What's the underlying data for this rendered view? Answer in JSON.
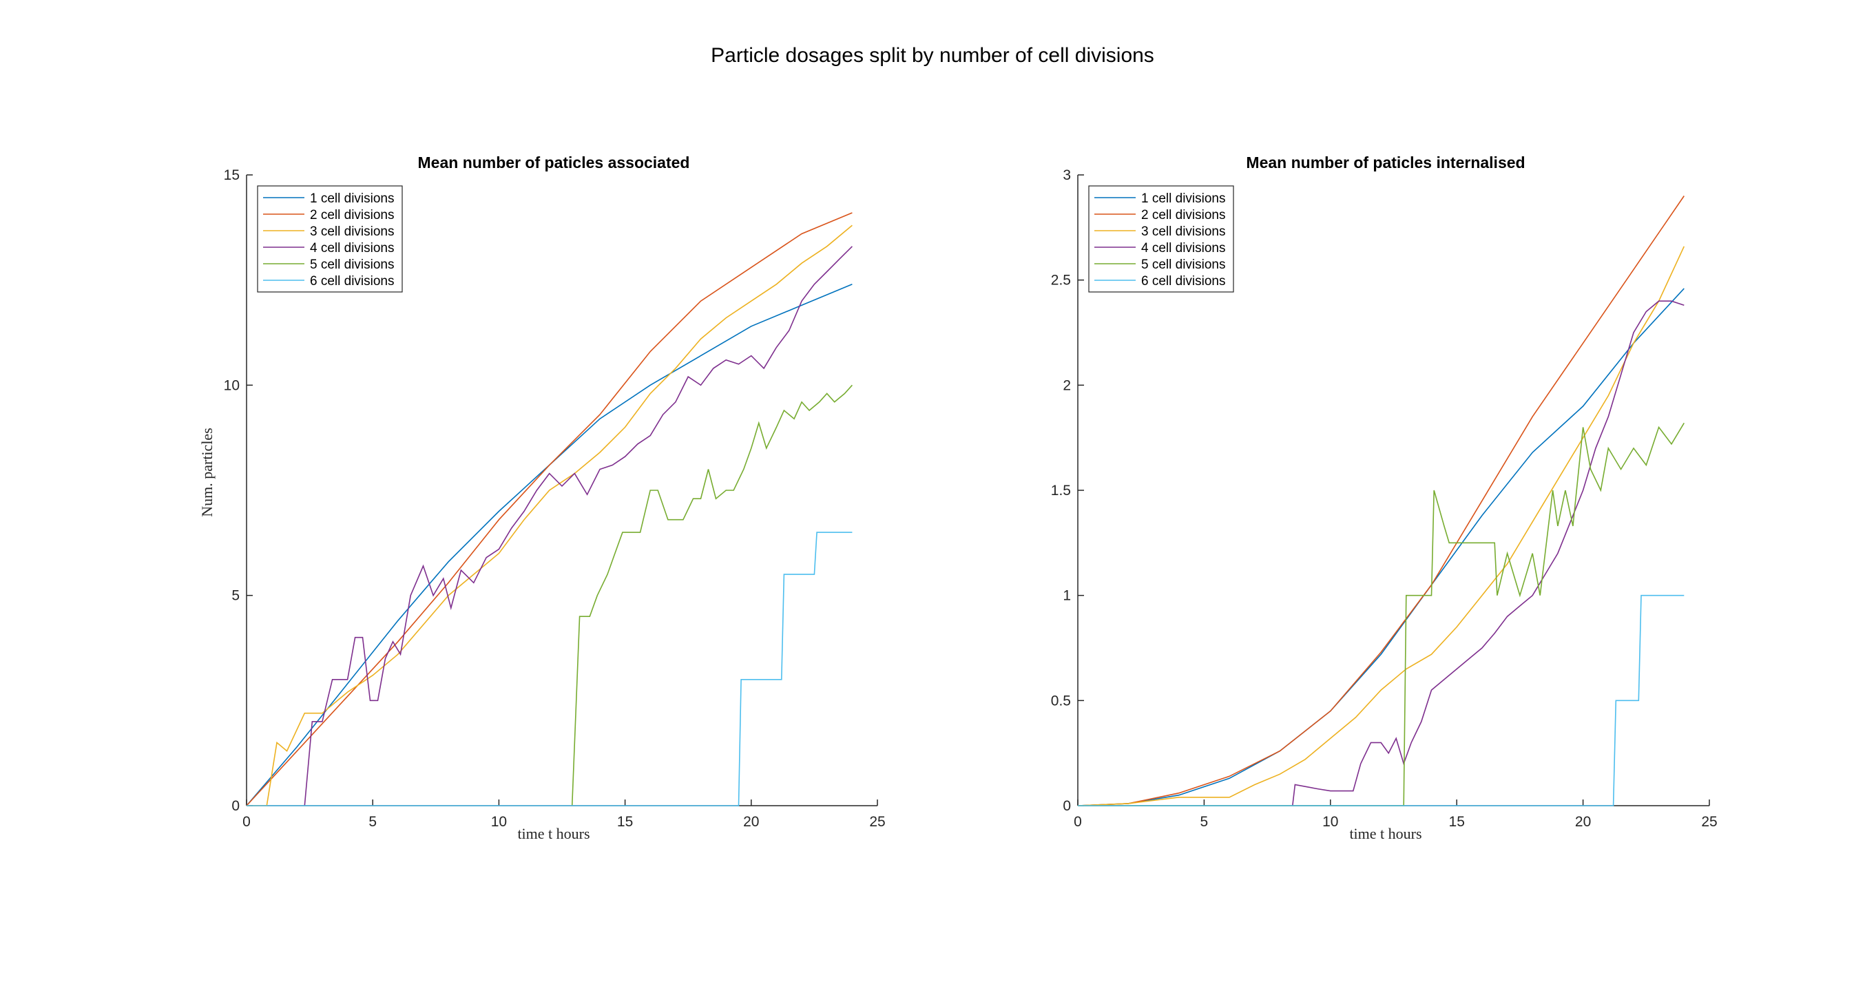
{
  "figure": {
    "title": "Particle dosages split by number of cell divisions"
  },
  "chart_data": [
    {
      "type": "line",
      "title": "Mean number of paticles associated",
      "xlabel": "time t hours",
      "ylabel": "Num. particles",
      "xlim": [
        0,
        25
      ],
      "ylim": [
        0,
        15
      ],
      "xticks": [
        "0",
        "5",
        "10",
        "15",
        "20",
        "25"
      ],
      "yticks": [
        "0",
        "5",
        "10",
        "15"
      ],
      "grid": false,
      "legend_position": "top-left",
      "series": [
        {
          "name": "1 cell divisions",
          "color": "#0072bd",
          "x": [
            0,
            2,
            4,
            6,
            8,
            10,
            12,
            14,
            16,
            18,
            20,
            22,
            24
          ],
          "y": [
            0,
            1.4,
            2.9,
            4.4,
            5.8,
            7.0,
            8.1,
            9.2,
            10.0,
            10.7,
            11.4,
            11.9,
            12.4
          ]
        },
        {
          "name": "2 cell divisions",
          "color": "#d95319",
          "x": [
            0,
            2,
            4,
            6,
            8,
            10,
            12,
            14,
            16,
            18,
            20,
            22,
            24
          ],
          "y": [
            0,
            1.3,
            2.6,
            3.9,
            5.3,
            6.8,
            8.1,
            9.3,
            10.8,
            12.0,
            12.8,
            13.6,
            14.1
          ]
        },
        {
          "name": "3 cell divisions",
          "color": "#edb120",
          "x": [
            0,
            0.8,
            1.2,
            1.6,
            2.3,
            3,
            4,
            5,
            6,
            7,
            8,
            9,
            10,
            11,
            12,
            13,
            14,
            15,
            16,
            17,
            18,
            19,
            20,
            21,
            22,
            23,
            24
          ],
          "y": [
            0,
            0,
            1.5,
            1.3,
            2.2,
            2.2,
            2.7,
            3.1,
            3.6,
            4.3,
            5.0,
            5.5,
            6.0,
            6.8,
            7.5,
            7.9,
            8.4,
            9.0,
            9.8,
            10.4,
            11.1,
            11.6,
            12.0,
            12.4,
            12.9,
            13.3,
            13.8
          ]
        },
        {
          "name": "4 cell divisions",
          "color": "#7e2f8e",
          "x": [
            2.3,
            2.6,
            3,
            3.4,
            4,
            4.3,
            4.6,
            4.9,
            5.2,
            5.5,
            5.8,
            6.1,
            6.5,
            7,
            7.4,
            7.8,
            8.1,
            8.5,
            9,
            9.5,
            10,
            10.5,
            11,
            11.5,
            12,
            12.5,
            13,
            13.5,
            14,
            14.5,
            15,
            15.5,
            16,
            16.5,
            17,
            17.5,
            18,
            18.5,
            19,
            19.5,
            20,
            20.5,
            21,
            21.5,
            22,
            22.5,
            23,
            23.5,
            24
          ],
          "y": [
            0,
            2.0,
            2.0,
            3.0,
            3.0,
            4.0,
            4.0,
            2.5,
            2.5,
            3.5,
            3.9,
            3.6,
            5.0,
            5.7,
            5.0,
            5.4,
            4.7,
            5.6,
            5.3,
            5.9,
            6.1,
            6.6,
            7.0,
            7.5,
            7.9,
            7.6,
            7.9,
            7.4,
            8.0,
            8.1,
            8.3,
            8.6,
            8.8,
            9.3,
            9.6,
            10.2,
            10.0,
            10.4,
            10.6,
            10.5,
            10.7,
            10.4,
            10.9,
            11.3,
            12.0,
            12.4,
            12.7,
            13.0,
            13.3
          ]
        },
        {
          "name": "5 cell divisions",
          "color": "#77ac30",
          "x": [
            12.9,
            13.2,
            13.6,
            13.9,
            14.3,
            14.6,
            14.9,
            15.3,
            15.6,
            16,
            16.3,
            16.7,
            17,
            17.3,
            17.7,
            18,
            18.3,
            18.6,
            19,
            19.3,
            19.7,
            20,
            20.3,
            20.6,
            21,
            21.3,
            21.7,
            22,
            22.3,
            22.7,
            23,
            23.3,
            23.7,
            24
          ],
          "y": [
            0,
            4.5,
            4.5,
            5.0,
            5.5,
            6.0,
            6.5,
            6.5,
            6.5,
            7.5,
            7.5,
            6.8,
            6.8,
            6.8,
            7.3,
            7.3,
            8.0,
            7.3,
            7.5,
            7.5,
            8.0,
            8.5,
            9.1,
            8.5,
            9.0,
            9.4,
            9.2,
            9.6,
            9.4,
            9.6,
            9.8,
            9.6,
            9.8,
            10.0
          ]
        },
        {
          "name": "6 cell divisions",
          "color": "#4dbeee",
          "x": [
            0,
            19.5,
            19.6,
            21.2,
            21.3,
            22.5,
            22.6,
            24
          ],
          "y": [
            0,
            0,
            3.0,
            3.0,
            5.5,
            5.5,
            6.5,
            6.5
          ]
        }
      ]
    },
    {
      "type": "line",
      "title": "Mean number of paticles internalised",
      "xlabel": "time t hours",
      "ylabel": "",
      "xlim": [
        0,
        25
      ],
      "ylim": [
        0,
        3
      ],
      "xticks": [
        "0",
        "5",
        "10",
        "15",
        "20",
        "25"
      ],
      "yticks": [
        "0",
        "0.5",
        "1",
        "1.5",
        "2",
        "2.5",
        "3"
      ],
      "grid": false,
      "legend_position": "top-left",
      "series": [
        {
          "name": "1 cell divisions",
          "color": "#0072bd",
          "x": [
            0,
            2,
            4,
            6,
            8,
            10,
            12,
            14,
            16,
            18,
            20,
            22,
            24
          ],
          "y": [
            0,
            0.01,
            0.05,
            0.13,
            0.26,
            0.45,
            0.72,
            1.05,
            1.38,
            1.68,
            1.9,
            2.2,
            2.46
          ]
        },
        {
          "name": "2 cell divisions",
          "color": "#d95319",
          "x": [
            0,
            2,
            4,
            6,
            8,
            10,
            12,
            14,
            16,
            18,
            20,
            22,
            24
          ],
          "y": [
            0,
            0.01,
            0.06,
            0.14,
            0.26,
            0.45,
            0.73,
            1.05,
            1.45,
            1.85,
            2.2,
            2.55,
            2.9
          ]
        },
        {
          "name": "3 cell divisions",
          "color": "#edb120",
          "x": [
            0,
            2,
            4,
            6,
            7,
            8,
            9,
            10,
            11,
            12,
            13,
            14,
            15,
            16,
            17,
            18,
            19,
            20,
            21,
            22,
            23,
            24
          ],
          "y": [
            0,
            0.01,
            0.04,
            0.04,
            0.1,
            0.15,
            0.22,
            0.32,
            0.42,
            0.55,
            0.65,
            0.72,
            0.85,
            1.0,
            1.15,
            1.35,
            1.55,
            1.75,
            1.95,
            2.2,
            2.4,
            2.66
          ]
        },
        {
          "name": "4 cell divisions",
          "color": "#7e2f8e",
          "x": [
            8.5,
            8.6,
            9.5,
            10,
            10.9,
            11.2,
            11.6,
            12,
            12.3,
            12.6,
            12.9,
            13.2,
            13.6,
            14,
            14.5,
            15,
            15.5,
            16,
            16.5,
            17,
            17.5,
            18,
            18.5,
            19,
            19.5,
            20,
            20.5,
            21,
            21.5,
            22,
            22.5,
            23,
            23.5,
            24
          ],
          "y": [
            0,
            0.1,
            0.08,
            0.07,
            0.07,
            0.2,
            0.3,
            0.3,
            0.25,
            0.32,
            0.2,
            0.3,
            0.4,
            0.55,
            0.6,
            0.65,
            0.7,
            0.75,
            0.82,
            0.9,
            0.95,
            1.0,
            1.1,
            1.2,
            1.35,
            1.5,
            1.7,
            1.85,
            2.05,
            2.25,
            2.35,
            2.4,
            2.4,
            2.38
          ]
        },
        {
          "name": "5 cell divisions",
          "color": "#77ac30",
          "x": [
            0,
            12.9,
            13.0,
            14.0,
            14.1,
            14.5,
            14.7,
            15.5,
            16.5,
            16.6,
            17,
            17.5,
            18,
            18.3,
            18.8,
            19,
            19.3,
            19.6,
            20,
            20.3,
            20.7,
            21,
            21.5,
            22,
            22.5,
            23,
            23.5,
            24
          ],
          "y": [
            0,
            0,
            1.0,
            1.0,
            1.5,
            1.33,
            1.25,
            1.25,
            1.25,
            1.0,
            1.2,
            1.0,
            1.2,
            1.0,
            1.5,
            1.33,
            1.5,
            1.33,
            1.8,
            1.6,
            1.5,
            1.7,
            1.6,
            1.7,
            1.62,
            1.8,
            1.72,
            1.82
          ]
        },
        {
          "name": "6 cell divisions",
          "color": "#4dbeee",
          "x": [
            0,
            21.2,
            21.3,
            22.2,
            22.3,
            24
          ],
          "y": [
            0,
            0,
            0.5,
            0.5,
            1.0,
            1.0
          ]
        }
      ]
    }
  ]
}
